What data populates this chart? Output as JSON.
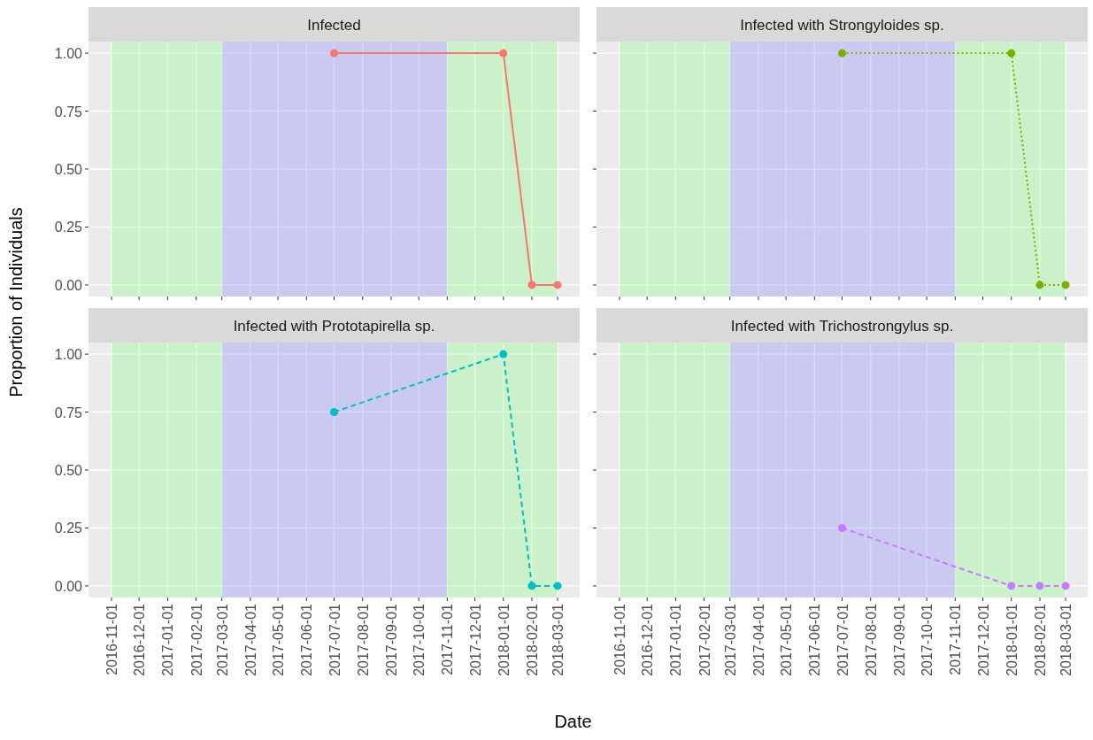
{
  "chart_data": [
    {
      "type": "line",
      "title": "Infected",
      "ylabel": "Proportion of Individuals",
      "x": [
        "2017-07-01",
        "2018-01-01",
        "2018-02-01",
        "2018-03-01"
      ],
      "series": [
        {
          "color": "#f8766d",
          "values": [
            1,
            1,
            0,
            0
          ],
          "line_style": "solid"
        }
      ],
      "marker": "circle",
      "xlim": [
        "2016-10-07",
        "2018-03-25"
      ],
      "xticks": [
        "2016-11-01",
        "2016-12-01",
        "2017-01-01",
        "2017-02-01",
        "2017-03-01",
        "2017-04-01",
        "2017-05-01",
        "2017-06-01",
        "2017-07-01",
        "2017-08-01",
        "2017-09-01",
        "2017-10-01",
        "2017-11-01",
        "2017-12-01",
        "2018-01-01",
        "2018-02-01",
        "2018-03-01"
      ],
      "ylim": [
        -0.05,
        1.05
      ],
      "yticks": [
        {
          "value": 0,
          "label": "0.00"
        },
        {
          "value": 0.25,
          "label": "0.25"
        },
        {
          "value": 0.5,
          "label": "0.50"
        },
        {
          "value": 0.75,
          "label": "0.75"
        },
        {
          "value": 1,
          "label": "1.00"
        }
      ],
      "bands": [
        {
          "axis": "x",
          "from": "2016-11-01",
          "to": "2017-03-01",
          "color": "#7fff7f"
        },
        {
          "axis": "x",
          "from": "2017-03-01",
          "to": "2017-11-01",
          "color": "#7f7fff"
        },
        {
          "axis": "x",
          "from": "2017-11-01",
          "to": "2018-03-01",
          "color": "#7fff7f"
        }
      ],
      "grid": true,
      "tick_labels": "y"
    },
    {
      "type": "line",
      "title": "Infected with Strongyloides sp.",
      "x": [
        "2017-07-01",
        "2018-01-01",
        "2018-02-01",
        "2018-03-01"
      ],
      "series": [
        {
          "color": "#7cae00",
          "values": [
            1,
            1,
            0,
            0
          ],
          "line_style": "dotted"
        }
      ],
      "marker": "circle",
      "xlim": [
        "2016-10-07",
        "2018-03-25"
      ],
      "xticks": [
        "2016-11-01",
        "2016-12-01",
        "2017-01-01",
        "2017-02-01",
        "2017-03-01",
        "2017-04-01",
        "2017-05-01",
        "2017-06-01",
        "2017-07-01",
        "2017-08-01",
        "2017-09-01",
        "2017-10-01",
        "2017-11-01",
        "2017-12-01",
        "2018-01-01",
        "2018-02-01",
        "2018-03-01"
      ],
      "ylim": [
        -0.05,
        1.05
      ],
      "yticks": [
        0,
        0.25,
        0.5,
        0.75,
        1
      ],
      "bands": [
        {
          "axis": "x",
          "from": "2016-11-01",
          "to": "2017-03-01",
          "color": "#7fff7f"
        },
        {
          "axis": "x",
          "from": "2017-03-01",
          "to": "2017-11-01",
          "color": "#7f7fff"
        },
        {
          "axis": "x",
          "from": "2017-11-01",
          "to": "2018-03-01",
          "color": "#7fff7f"
        }
      ],
      "grid": true,
      "tick_labels": false
    },
    {
      "type": "line",
      "title": "Infected with Prototapirella sp.",
      "x": [
        "2017-07-01",
        "2018-01-01",
        "2018-02-01",
        "2018-03-01"
      ],
      "series": [
        {
          "color": "#00bfc4",
          "values": [
            0.75,
            1,
            0,
            0
          ],
          "line_style": "dashed"
        }
      ],
      "marker": "circle",
      "xlim": [
        "2016-10-07",
        "2018-03-25"
      ],
      "xticks": [
        "2016-11-01",
        "2016-12-01",
        "2017-01-01",
        "2017-02-01",
        "2017-03-01",
        "2017-04-01",
        "2017-05-01",
        "2017-06-01",
        "2017-07-01",
        "2017-08-01",
        "2017-09-01",
        "2017-10-01",
        "2017-11-01",
        "2017-12-01",
        "2018-01-01",
        "2018-02-01",
        "2018-03-01"
      ],
      "ylim": [
        -0.05,
        1.05
      ],
      "yticks": [
        {
          "value": 0,
          "label": "0.00"
        },
        {
          "value": 0.25,
          "label": "0.25"
        },
        {
          "value": 0.5,
          "label": "0.50"
        },
        {
          "value": 0.75,
          "label": "0.75"
        },
        {
          "value": 1,
          "label": "1.00"
        }
      ],
      "bands": [
        {
          "axis": "x",
          "from": "2016-11-01",
          "to": "2017-03-01",
          "color": "#7fff7f"
        },
        {
          "axis": "x",
          "from": "2017-03-01",
          "to": "2017-11-01",
          "color": "#7f7fff"
        },
        {
          "axis": "x",
          "from": "2017-11-01",
          "to": "2018-03-01",
          "color": "#7fff7f"
        }
      ],
      "grid": true
    },
    {
      "type": "line",
      "title": "Infected with Trichostrongylus sp.",
      "xlabel": "Date",
      "x": [
        "2017-07-01",
        "2018-01-01",
        "2018-02-01",
        "2018-03-01"
      ],
      "series": [
        {
          "color": "#c77cff",
          "values": [
            0.25,
            0,
            0,
            0
          ],
          "line_style": "dashed"
        }
      ],
      "marker": "circle",
      "xlim": [
        "2016-10-07",
        "2018-03-25"
      ],
      "xticks": [
        "2016-11-01",
        "2016-12-01",
        "2017-01-01",
        "2017-02-01",
        "2017-03-01",
        "2017-04-01",
        "2017-05-01",
        "2017-06-01",
        "2017-07-01",
        "2017-08-01",
        "2017-09-01",
        "2017-10-01",
        "2017-11-01",
        "2017-12-01",
        "2018-01-01",
        "2018-02-01",
        "2018-03-01"
      ],
      "ylim": [
        -0.05,
        1.05
      ],
      "yticks": [
        0,
        0.25,
        0.5,
        0.75,
        1
      ],
      "bands": [
        {
          "axis": "x",
          "from": "2016-11-01",
          "to": "2017-03-01",
          "color": "#7fff7f"
        },
        {
          "axis": "x",
          "from": "2017-03-01",
          "to": "2017-11-01",
          "color": "#7f7fff"
        },
        {
          "axis": "x",
          "from": "2017-11-01",
          "to": "2018-03-01",
          "color": "#7fff7f"
        }
      ],
      "grid": true,
      "tick_labels": "x"
    }
  ]
}
